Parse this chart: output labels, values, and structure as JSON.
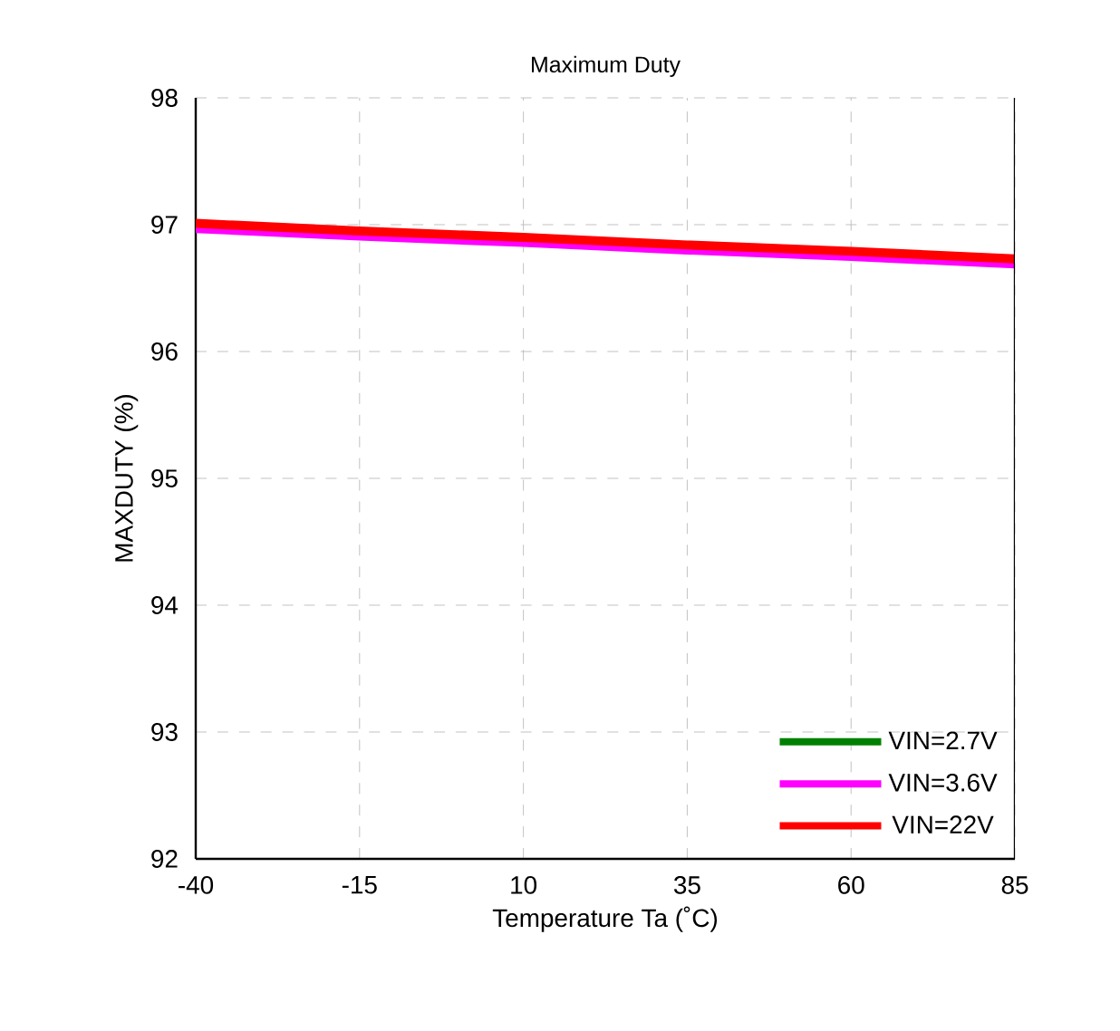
{
  "chart_data": {
    "type": "line",
    "title": "Maximum Duty",
    "xlabel": "Temperature Ta (˚C)",
    "ylabel": "MAXDUTY (%)",
    "x": [
      -40,
      -15,
      10,
      35,
      60,
      85
    ],
    "series": [
      {
        "name": "VIN=2.7V",
        "color": "#008000",
        "values": [
          null,
          null,
          null,
          null,
          null,
          null
        ]
      },
      {
        "name": "VIN=3.6V",
        "color": "#ff00ff",
        "values": [
          96.97,
          96.91,
          96.86,
          96.8,
          96.75,
          96.69
        ]
      },
      {
        "name": "VIN=22V",
        "color": "#ff0000",
        "values": [
          97.01,
          96.95,
          96.9,
          96.84,
          96.79,
          96.73
        ]
      }
    ],
    "xlim": [
      -40,
      85
    ],
    "xticks": [
      -40,
      -15,
      10,
      35,
      60,
      85
    ],
    "ylim": [
      92,
      98
    ],
    "yticks": [
      92,
      93,
      94,
      95,
      96,
      97,
      98
    ],
    "grid": true,
    "legend": "bottom right",
    "line_style": "solid",
    "marker": "none"
  }
}
